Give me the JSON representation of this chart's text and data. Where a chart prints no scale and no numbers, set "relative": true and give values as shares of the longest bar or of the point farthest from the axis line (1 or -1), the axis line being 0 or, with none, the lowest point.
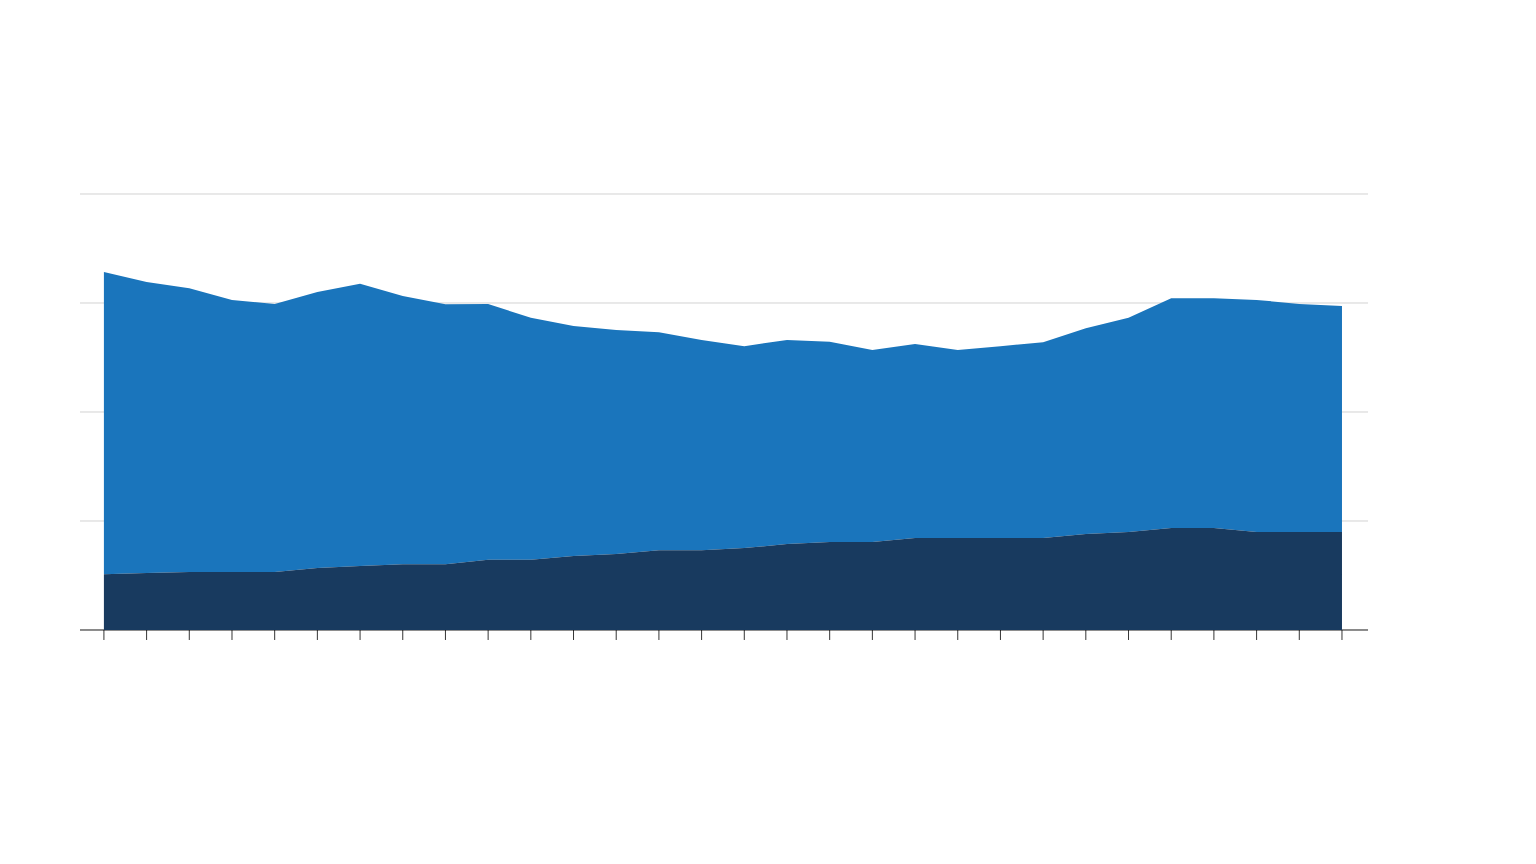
{
  "chart_data": {
    "type": "area",
    "stacked": true,
    "relative": true,
    "grid": "y",
    "categories": [
      null,
      null,
      null,
      null,
      null,
      null,
      null,
      null,
      null,
      null,
      null,
      null,
      null,
      null,
      null,
      null,
      null,
      null,
      null,
      null,
      null,
      null,
      null,
      null,
      null,
      null,
      null,
      null,
      null,
      null
    ],
    "series": [
      {
        "color": "#183a5f",
        "values": [
          0.156,
          0.159,
          0.162,
          0.162,
          0.162,
          0.173,
          0.179,
          0.184,
          0.184,
          0.196,
          0.196,
          0.207,
          0.212,
          0.223,
          0.223,
          0.229,
          0.24,
          0.246,
          0.246,
          0.257,
          0.257,
          0.257,
          0.257,
          0.268,
          0.274,
          0.285,
          0.285,
          0.274,
          0.274,
          0.274
        ]
      },
      {
        "color": "#1a75bc",
        "values": [
          0.844,
          0.813,
          0.793,
          0.76,
          0.749,
          0.771,
          0.788,
          0.749,
          0.726,
          0.715,
          0.676,
          0.642,
          0.626,
          0.609,
          0.587,
          0.564,
          0.57,
          0.559,
          0.536,
          0.542,
          0.525,
          0.536,
          0.547,
          0.575,
          0.598,
          0.642,
          0.642,
          0.648,
          0.637,
          0.631
        ]
      }
    ]
  }
}
